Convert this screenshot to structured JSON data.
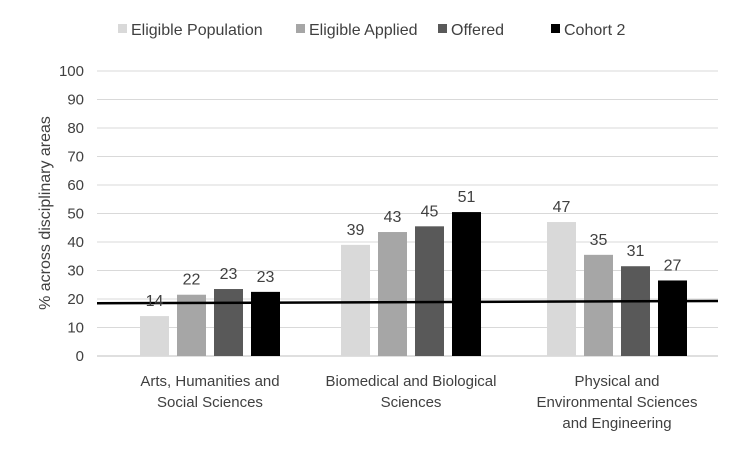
{
  "chart_data": {
    "type": "bar",
    "title": "",
    "xlabel": "",
    "ylabel": "% across disciplinary areas",
    "ylim": [
      0,
      100
    ],
    "yticks": [
      0,
      10,
      20,
      30,
      40,
      50,
      60,
      70,
      80,
      90,
      100
    ],
    "grid": true,
    "legend_position": "top",
    "categories": [
      [
        "Arts, Humanities and",
        "Social Sciences"
      ],
      [
        "Biomedical and Biological",
        "Sciences"
      ],
      [
        "Physical and",
        "Environmental Sciences",
        "and Engineering"
      ]
    ],
    "series": [
      {
        "name": "Eligible Population",
        "color": "#d9d9d9",
        "values": [
          14,
          39,
          47
        ]
      },
      {
        "name": "Eligible Applied",
        "color": "#a6a6a6",
        "values": [
          22,
          43,
          35
        ]
      },
      {
        "name": "Offered",
        "color": "#595959",
        "values": [
          23,
          45,
          31
        ]
      },
      {
        "name": "Cohort 2",
        "color": "#000000",
        "values": [
          23,
          51,
          27
        ]
      }
    ],
    "bar_heights": [
      [
        14,
        21.5,
        23.5,
        22.5
      ],
      [
        39,
        43.5,
        45.5,
        50.5
      ],
      [
        47,
        35.5,
        31.5,
        26.5
      ]
    ],
    "reference_line": {
      "color": "#000000",
      "start": 18.5,
      "end": 19.3
    }
  }
}
